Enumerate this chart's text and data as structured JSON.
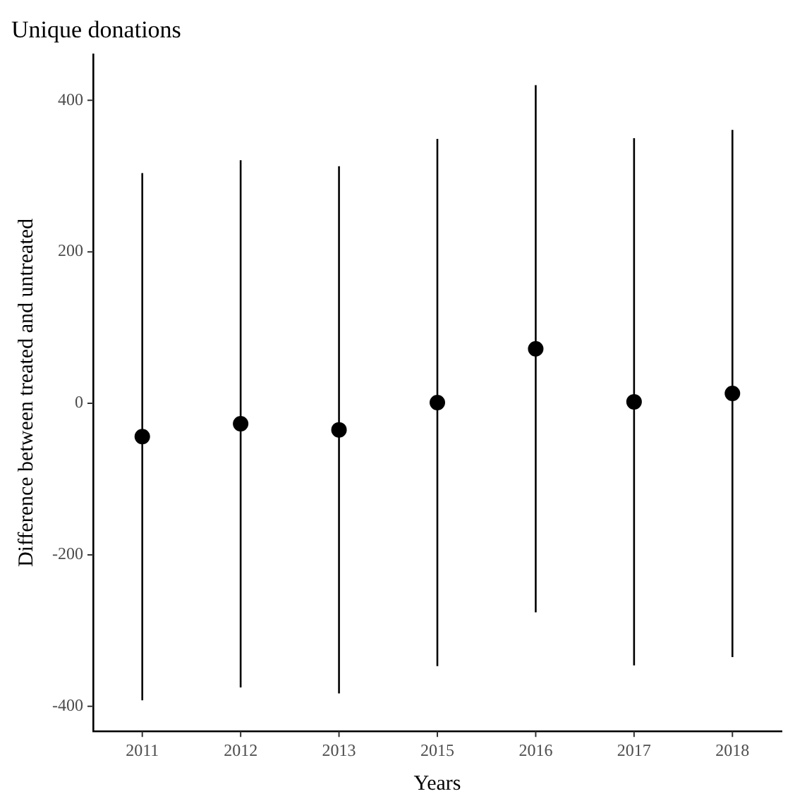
{
  "chart_data": {
    "type": "scatter",
    "title": "Unique donations",
    "xlabel": "Years",
    "ylabel": "Difference between treated and untreated",
    "categories": [
      "2011",
      "2012",
      "2013",
      "2015",
      "2016",
      "2017",
      "2018"
    ],
    "values": [
      -44,
      -27,
      -35,
      1,
      72,
      2,
      13
    ],
    "errors": [
      348,
      348,
      348,
      348,
      348,
      348,
      348
    ],
    "color": "#000000",
    "marker": "circle",
    "ylim": [
      -433,
      461
    ],
    "yticks": [
      -400,
      -200,
      0,
      200,
      400
    ],
    "grid": false,
    "legend": false
  }
}
